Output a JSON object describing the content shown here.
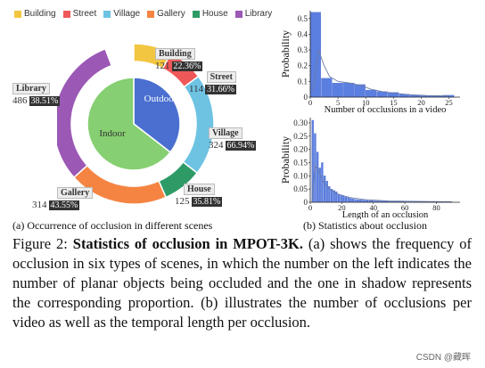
{
  "legend": [
    {
      "label": "Building",
      "color": "#f2c641"
    },
    {
      "label": "Street",
      "color": "#ef5858"
    },
    {
      "label": "Village",
      "color": "#6ec3e3"
    },
    {
      "label": "Gallery",
      "color": "#f58442"
    },
    {
      "label": "House",
      "color": "#2e9b67"
    },
    {
      "label": "Library",
      "color": "#9b58b5"
    }
  ],
  "donut": {
    "outer": [
      {
        "label": "Building",
        "count": "121",
        "pct": "22.36%",
        "share": 0.0768,
        "color": "#f2c641"
      },
      {
        "label": "Street",
        "count": "114",
        "pct": "31.66%",
        "share": 0.0724,
        "color": "#ef5858"
      },
      {
        "label": "Village",
        "count": "324",
        "pct": "66.94%",
        "share": 0.2057,
        "color": "#6ec3e3"
      },
      {
        "label": "House",
        "count": "125",
        "pct": "35.81%",
        "share": 0.0794,
        "color": "#2e9b67"
      },
      {
        "label": "Gallery",
        "count": "314",
        "pct": "43.55%",
        "share": 0.1994,
        "color": "#f58442"
      },
      {
        "label": "Library",
        "count": "486",
        "pct": "38.51%",
        "share": 0.3086,
        "color": "#9b58b5"
      }
    ],
    "inner": [
      {
        "label": "Outdoor",
        "share": 0.355,
        "color": "#4a6fd0"
      },
      {
        "label": "Indoor",
        "share": 0.645,
        "color": "#86cf72"
      }
    ]
  },
  "chart_data": [
    {
      "type": "bar",
      "xlabel": "Number of occlusions in a video",
      "ylabel": "Probability",
      "xticks": [
        "0",
        "5",
        "10",
        "15",
        "20",
        "25"
      ],
      "yticks": [
        "0",
        "0.1",
        "0.2",
        "0.3",
        "0.4",
        "0.5"
      ],
      "xlim": [
        0,
        27
      ],
      "ylim": [
        0,
        0.55
      ],
      "bins": [
        {
          "x0": 0,
          "x1": 2,
          "y": 0.54
        },
        {
          "x0": 2,
          "x1": 4,
          "y": 0.12
        },
        {
          "x0": 4,
          "x1": 6,
          "y": 0.09
        },
        {
          "x0": 6,
          "x1": 8,
          "y": 0.09
        },
        {
          "x0": 8,
          "x1": 10,
          "y": 0.08
        },
        {
          "x0": 10,
          "x1": 12,
          "y": 0.045
        },
        {
          "x0": 12,
          "x1": 14,
          "y": 0.035
        },
        {
          "x0": 14,
          "x1": 16,
          "y": 0.03
        },
        {
          "x0": 16,
          "x1": 18,
          "y": 0.018
        },
        {
          "x0": 18,
          "x1": 20,
          "y": 0.012
        },
        {
          "x0": 20,
          "x1": 22,
          "y": 0.01
        },
        {
          "x0": 22,
          "x1": 24,
          "y": 0.008
        },
        {
          "x0": 24,
          "x1": 26,
          "y": 0.012
        }
      ],
      "curve": [
        [
          0.5,
          0.04
        ],
        [
          1.5,
          0.3
        ],
        [
          2.5,
          0.2
        ],
        [
          3.5,
          0.13
        ],
        [
          5,
          0.1
        ],
        [
          7,
          0.09
        ],
        [
          9,
          0.075
        ],
        [
          11,
          0.05
        ],
        [
          13,
          0.035
        ],
        [
          15,
          0.025
        ],
        [
          18,
          0.015
        ],
        [
          21,
          0.01
        ],
        [
          25,
          0.008
        ]
      ]
    },
    {
      "type": "bar",
      "xlabel": "Length of an occlusion",
      "ylabel": "Probability",
      "xticks": [
        "0",
        "20",
        "40",
        "60",
        "80"
      ],
      "yticks": [
        "0",
        "0.05",
        "0.10",
        "0.15",
        "0.20",
        "0.25",
        "0.30"
      ],
      "xlim": [
        0,
        95
      ],
      "ylim": [
        0,
        0.32
      ],
      "bins": [
        {
          "x0": 1,
          "x1": 2.5,
          "y": 0.31
        },
        {
          "x0": 2.5,
          "x1": 4,
          "y": 0.26
        },
        {
          "x0": 4,
          "x1": 5.5,
          "y": 0.19
        },
        {
          "x0": 5.5,
          "x1": 7,
          "y": 0.13
        },
        {
          "x0": 7,
          "x1": 8.5,
          "y": 0.15
        },
        {
          "x0": 8.5,
          "x1": 10,
          "y": 0.1
        },
        {
          "x0": 10,
          "x1": 11.5,
          "y": 0.08
        },
        {
          "x0": 11.5,
          "x1": 13,
          "y": 0.06
        },
        {
          "x0": 13,
          "x1": 14.5,
          "y": 0.05
        },
        {
          "x0": 14.5,
          "x1": 16,
          "y": 0.045
        },
        {
          "x0": 16,
          "x1": 17.5,
          "y": 0.04
        },
        {
          "x0": 17.5,
          "x1": 19,
          "y": 0.03
        },
        {
          "x0": 19,
          "x1": 20.5,
          "y": 0.028
        },
        {
          "x0": 20.5,
          "x1": 22,
          "y": 0.025
        },
        {
          "x0": 22,
          "x1": 23.5,
          "y": 0.02
        },
        {
          "x0": 23.5,
          "x1": 25,
          "y": 0.018
        },
        {
          "x0": 25,
          "x1": 26.5,
          "y": 0.015
        },
        {
          "x0": 26.5,
          "x1": 28,
          "y": 0.013
        },
        {
          "x0": 28,
          "x1": 29.5,
          "y": 0.011
        },
        {
          "x0": 29.5,
          "x1": 31,
          "y": 0.01
        },
        {
          "x0": 31,
          "x1": 33,
          "y": 0.009
        },
        {
          "x0": 33,
          "x1": 35,
          "y": 0.008
        },
        {
          "x0": 35,
          "x1": 37,
          "y": 0.007
        },
        {
          "x0": 37,
          "x1": 40,
          "y": 0.006
        },
        {
          "x0": 40,
          "x1": 44,
          "y": 0.005
        },
        {
          "x0": 44,
          "x1": 50,
          "y": 0.004
        },
        {
          "x0": 50,
          "x1": 60,
          "y": 0.003
        },
        {
          "x0": 60,
          "x1": 75,
          "y": 0.002
        },
        {
          "x0": 75,
          "x1": 90,
          "y": 0.0015
        }
      ],
      "curve": [
        [
          1,
          0.0
        ],
        [
          3,
          0.14
        ],
        [
          5,
          0.12
        ],
        [
          8,
          0.08
        ],
        [
          12,
          0.05
        ],
        [
          18,
          0.03
        ],
        [
          25,
          0.018
        ],
        [
          35,
          0.01
        ],
        [
          50,
          0.005
        ],
        [
          70,
          0.003
        ],
        [
          90,
          0.002
        ]
      ]
    }
  ],
  "subcaptions": {
    "a": "(a) Occurrence of occlusion in different scenes",
    "b": "(b) Statistics about occlusion"
  },
  "caption": {
    "label": "Figure 2:",
    "title": "Statistics of occlusion in MPOT-3K.",
    "body": " (a) shows the frequency of occlusion in six types of scenes, in which the number on the left indicates the number of planar objects being occluded and the one in shadow represents the corresponding proportion. (b) illustrates the number of occlusions per video as well as the temporal length per occlusion."
  },
  "watermark": "CSDN @藏晖"
}
